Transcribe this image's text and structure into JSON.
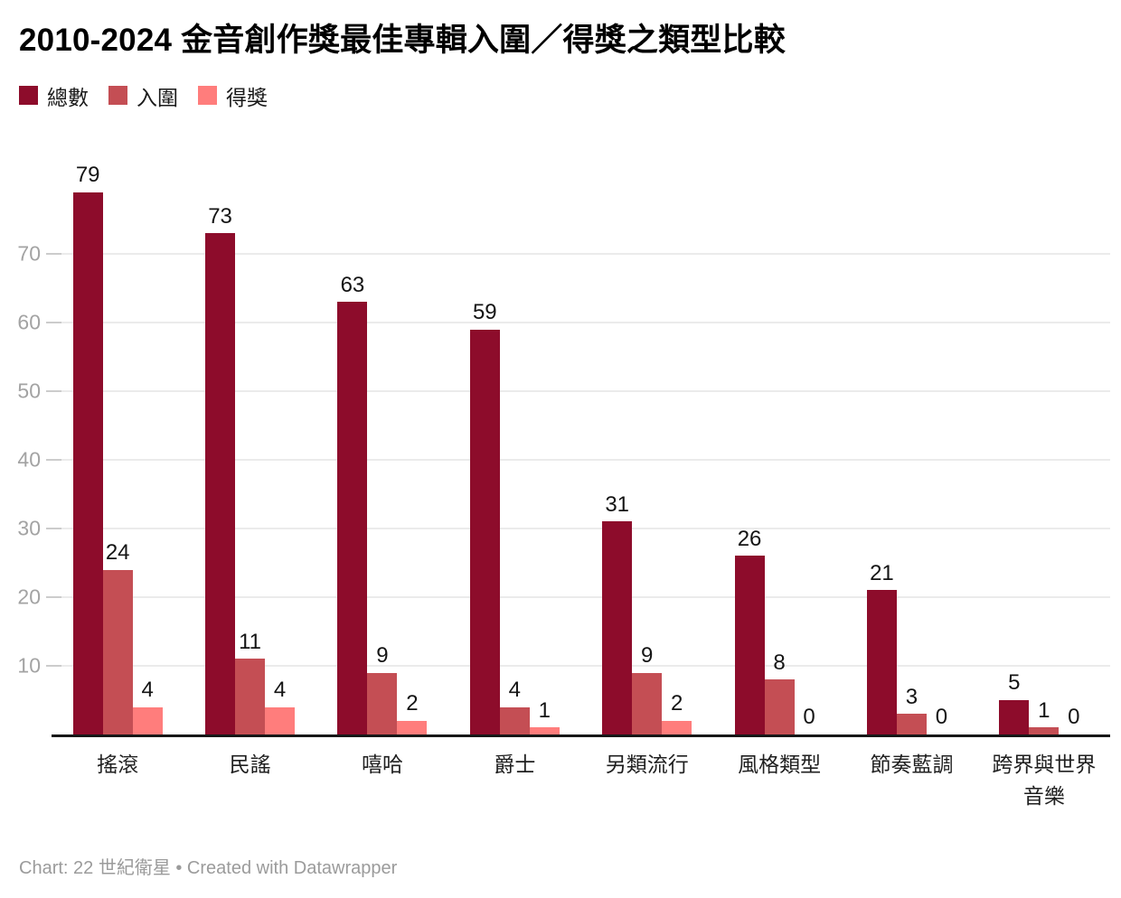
{
  "title": "2010-2024 金音創作獎最佳專輯入圍／得獎之類型比較",
  "legend": {
    "items": [
      {
        "label": "總數",
        "color": "#8d0c2b"
      },
      {
        "label": "入圍",
        "color": "#c44e54"
      },
      {
        "label": "得獎",
        "color": "#ff7d7c"
      }
    ]
  },
  "chart_data": {
    "type": "bar",
    "title": "2010-2024 金音創作獎最佳專輯入圍／得獎之類型比較",
    "categories": [
      "搖滾",
      "民謠",
      "嘻哈",
      "爵士",
      "另類流行",
      "風格類型",
      "節奏藍調",
      "跨界與世界音樂"
    ],
    "series": [
      {
        "name": "總數",
        "color": "#8d0c2b",
        "values": [
          79,
          73,
          63,
          59,
          31,
          26,
          21,
          5
        ]
      },
      {
        "name": "入圍",
        "color": "#c44e54",
        "values": [
          24,
          11,
          9,
          4,
          9,
          8,
          3,
          1
        ]
      },
      {
        "name": "得獎",
        "color": "#ff7d7c",
        "values": [
          4,
          4,
          2,
          1,
          2,
          0,
          0,
          0
        ]
      }
    ],
    "xlabel": "",
    "ylabel": "",
    "yticks": [
      10,
      20,
      30,
      40,
      50,
      60,
      70
    ],
    "ylim": [
      0,
      84
    ],
    "grid": true,
    "value_labels": true,
    "legend_position": "top"
  },
  "axis": {
    "tick_color": "#a3a3a3",
    "grid_color": "#ebebeb",
    "baseline_color": "#171717"
  },
  "footer": {
    "text": "Chart: 22 世紀衛星 • Created with Datawrapper"
  }
}
